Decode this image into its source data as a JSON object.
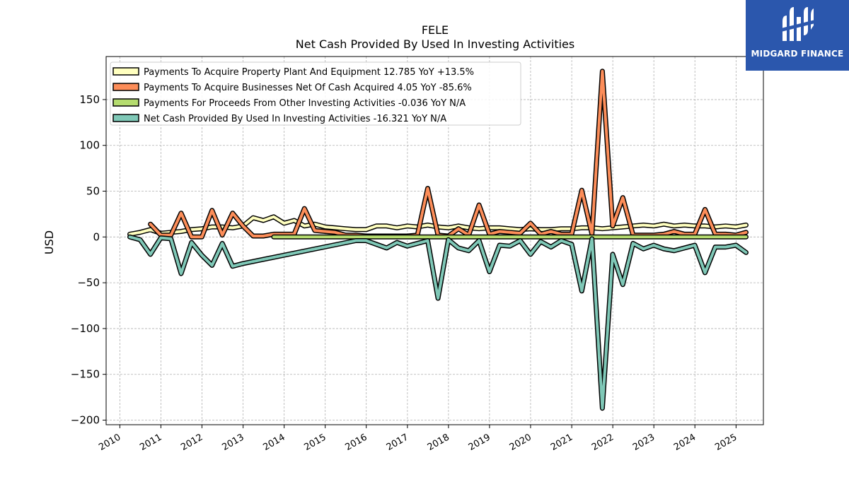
{
  "chart_data": {
    "type": "line",
    "title": "FELE",
    "subtitle": "Net Cash Provided By Used In Investing Activities",
    "ylabel": "USD",
    "xlabel": "",
    "ylim": [
      -205,
      197
    ],
    "xlim": [
      "2009-09-01",
      "2025-09-01"
    ],
    "yticks": [
      150,
      100,
      50,
      0,
      -50,
      -100,
      -150,
      -200
    ],
    "ytick_labels": [
      "150",
      "100",
      "50",
      "0",
      "−50",
      "−100",
      "−150",
      "−200"
    ],
    "xticks": [
      "2010",
      "2011",
      "2012",
      "2013",
      "2014",
      "2015",
      "2016",
      "2017",
      "2018",
      "2019",
      "2020",
      "2021",
      "2022",
      "2023",
      "2024",
      "2025"
    ],
    "grid": true,
    "legend_position": "top-left",
    "series": [
      {
        "name": "Payments To Acquire Property Plant And Equipment  12.785 YoY +13.5%",
        "color": "#ffffbf",
        "x": [
          "2010-03-31",
          "2010-06-30",
          "2010-09-30",
          "2010-12-31",
          "2011-03-31",
          "2011-06-30",
          "2011-09-30",
          "2011-12-31",
          "2012-03-31",
          "2012-06-30",
          "2012-09-30",
          "2012-12-31",
          "2013-03-31",
          "2013-06-30",
          "2013-09-30",
          "2013-12-31",
          "2014-03-31",
          "2014-06-30",
          "2014-09-30",
          "2014-12-31",
          "2015-03-31",
          "2015-06-30",
          "2015-09-30",
          "2015-12-31",
          "2016-03-31",
          "2016-06-30",
          "2016-09-30",
          "2016-12-31",
          "2017-03-31",
          "2017-06-30",
          "2017-09-30",
          "2017-12-31",
          "2018-03-31",
          "2018-06-30",
          "2018-09-30",
          "2018-12-31",
          "2019-03-31",
          "2019-06-30",
          "2019-09-30",
          "2019-12-31",
          "2020-03-31",
          "2020-06-30",
          "2020-09-30",
          "2020-12-31",
          "2021-03-31",
          "2021-06-30",
          "2021-09-30",
          "2021-12-31",
          "2022-03-31",
          "2022-06-30",
          "2022-09-30",
          "2022-12-31",
          "2023-03-31",
          "2023-06-30",
          "2023-09-30",
          "2023-12-31",
          "2024-03-31",
          "2024-06-30",
          "2024-09-30",
          "2024-12-31",
          "2025-03-31"
        ],
        "values": [
          3,
          5,
          8,
          4,
          5,
          6,
          8,
          9,
          11,
          11,
          10,
          12,
          21,
          18,
          22,
          15,
          18,
          12,
          14,
          11,
          10,
          9,
          8,
          8,
          12,
          12,
          10,
          12,
          11,
          13,
          11,
          10,
          12,
          10,
          9,
          10,
          10,
          9,
          8,
          9,
          8,
          8,
          9,
          9,
          10,
          10,
          9,
          10,
          11,
          12,
          13,
          12,
          14,
          12,
          13,
          12,
          12,
          11,
          12,
          11,
          13
        ]
      },
      {
        "name": "Payments To Acquire Businesses Net Of Cash Acquired  4.05 YoY -85.6%",
        "color": "#fc8d59",
        "x": [
          "2010-09-30",
          "2010-12-31",
          "2011-03-31",
          "2011-06-30",
          "2011-09-30",
          "2011-12-31",
          "2012-03-31",
          "2012-06-30",
          "2012-09-30",
          "2012-12-31",
          "2013-03-31",
          "2013-06-30",
          "2013-09-30",
          "2013-12-31",
          "2014-03-31",
          "2014-06-30",
          "2014-09-30",
          "2014-12-31",
          "2015-03-31",
          "2015-06-30",
          "2015-09-30",
          "2015-12-31",
          "2016-03-31",
          "2016-06-30",
          "2016-09-30",
          "2016-12-31",
          "2017-03-31",
          "2017-06-30",
          "2017-09-30",
          "2017-12-31",
          "2018-03-31",
          "2018-06-30",
          "2018-09-30",
          "2018-12-31",
          "2019-03-31",
          "2019-06-30",
          "2019-09-30",
          "2019-12-31",
          "2020-03-31",
          "2020-06-30",
          "2020-09-30",
          "2020-12-31",
          "2021-03-31",
          "2021-06-30",
          "2021-09-30",
          "2021-12-31",
          "2022-03-31",
          "2022-06-30",
          "2022-09-30",
          "2022-12-31",
          "2023-03-31",
          "2023-06-30",
          "2023-09-30",
          "2023-12-31",
          "2024-03-31",
          "2024-06-30",
          "2024-09-30",
          "2024-12-31",
          "2025-03-31"
        ],
        "values": [
          14,
          2,
          2,
          26,
          0,
          0,
          29,
          2,
          26,
          12,
          1,
          1,
          3,
          3,
          3,
          31,
          7,
          6,
          5,
          2,
          2,
          1,
          1,
          1,
          1,
          1,
          2,
          53,
          2,
          1,
          9,
          2,
          35,
          3,
          6,
          5,
          4,
          15,
          3,
          6,
          3,
          3,
          51,
          3,
          181,
          12,
          43,
          2,
          2,
          2,
          3,
          6,
          3,
          3,
          30,
          3,
          3,
          2,
          5
        ]
      },
      {
        "name": "Payments For Proceeds From Other Investing Activities  -0.036 YoY N/A",
        "color": "#b5dc6f",
        "x": [
          "2013-09-30",
          "2025-03-31"
        ],
        "values": [
          0,
          0
        ]
      },
      {
        "name": "Net Cash Provided By Used In Investing Activities  -16.321 YoY N/A",
        "color": "#7fc8b7",
        "x": [
          "2010-03-31",
          "2010-06-30",
          "2010-09-30",
          "2010-12-31",
          "2011-03-31",
          "2011-06-30",
          "2011-09-30",
          "2011-12-31",
          "2012-03-31",
          "2012-06-30",
          "2012-09-30",
          "2012-12-31",
          "2015-09-30",
          "2015-12-31",
          "2016-03-31",
          "2016-06-30",
          "2016-09-30",
          "2016-12-31",
          "2017-03-31",
          "2017-06-30",
          "2017-09-30",
          "2017-12-31",
          "2018-03-31",
          "2018-06-30",
          "2018-09-30",
          "2018-12-31",
          "2019-03-31",
          "2019-06-30",
          "2019-09-30",
          "2019-12-31",
          "2020-03-31",
          "2020-06-30",
          "2020-09-30",
          "2020-12-31",
          "2021-03-31",
          "2021-06-30",
          "2021-09-30",
          "2021-12-31",
          "2022-03-31",
          "2022-06-30",
          "2022-09-30",
          "2022-12-31",
          "2023-03-31",
          "2023-06-30",
          "2023-09-30",
          "2023-12-31",
          "2024-03-31",
          "2024-06-30",
          "2024-09-30",
          "2024-12-31",
          "2025-03-31"
        ],
        "values": [
          0,
          -3,
          -19,
          -1,
          -2,
          -40,
          -6,
          -20,
          -31,
          -7,
          -32,
          -29,
          -4,
          -4,
          -8,
          -12,
          -6,
          -10,
          -7,
          -4,
          -67,
          -3,
          -12,
          -15,
          -4,
          -38,
          -9,
          -10,
          -4,
          -19,
          -5,
          -11,
          -4,
          -8,
          -59,
          -2,
          -187,
          -19,
          -52,
          -7,
          -13,
          -9,
          -13,
          -15,
          -12,
          -9,
          -39,
          -11,
          -11,
          -9,
          -17
        ]
      }
    ]
  },
  "logo": {
    "text": "MIDGARD FINANCE",
    "icon": "midgard-logo-icon",
    "color": "#2b57ad"
  }
}
